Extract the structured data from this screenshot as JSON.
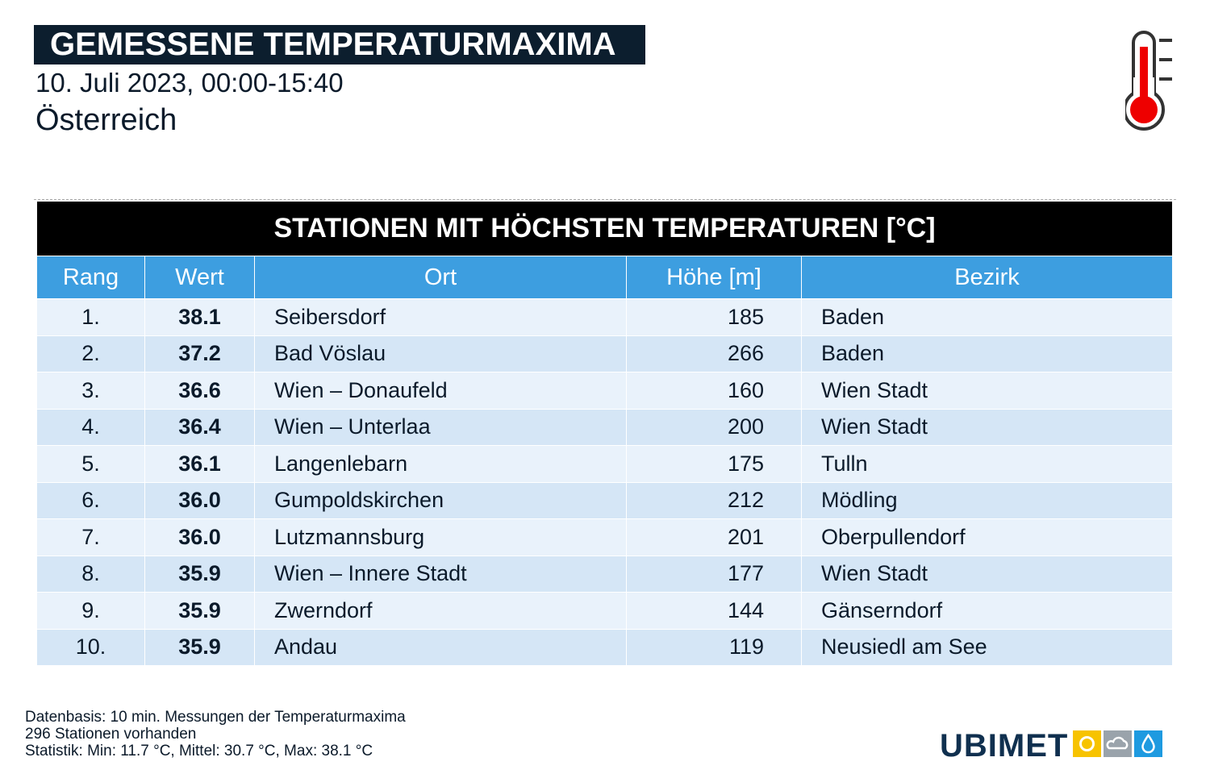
{
  "header": {
    "title": "GEMESSENE TEMPERATURMAXIMA",
    "date": "10. Juli 2023, 00:00-15:40",
    "region": "Österreich"
  },
  "table": {
    "title": "STATIONEN MIT HÖCHSTEN TEMPERATUREN [°C]",
    "columns": [
      "Rang",
      "Wert",
      "Ort",
      "Höhe [m]",
      "Bezirk"
    ],
    "rows": [
      [
        "1.",
        "38.1",
        "Seibersdorf",
        "185",
        "Baden"
      ],
      [
        "2.",
        "37.2",
        "Bad Vöslau",
        "266",
        "Baden"
      ],
      [
        "3.",
        "36.6",
        "Wien – Donaufeld",
        "160",
        "Wien Stadt"
      ],
      [
        "4.",
        "36.4",
        "Wien – Unterlaa",
        "200",
        "Wien Stadt"
      ],
      [
        "5.",
        "36.1",
        "Langenlebarn",
        "175",
        "Tulln"
      ],
      [
        "6.",
        "36.0",
        "Gumpoldskirchen",
        "212",
        "Mödling"
      ],
      [
        "7.",
        "36.0",
        "Lutzmannsburg",
        "201",
        "Oberpullendorf"
      ],
      [
        "8.",
        "35.9",
        "Wien – Innere Stadt",
        "177",
        "Wien Stadt"
      ],
      [
        "9.",
        "35.9",
        "Zwerndorf",
        "144",
        "Gänserndorf"
      ],
      [
        "10.",
        "35.9",
        "Andau",
        "119",
        "Neusiedl am See"
      ]
    ]
  },
  "footer": {
    "lines": [
      "Datenbasis: 10 min. Messungen der Temperaturmaxima",
      "296 Stationen vorhanden",
      "Statistik: Min: 11.7 °C, Mittel: 30.7 °C, Max: 38.1 °C"
    ],
    "logo": "UBIMET"
  }
}
